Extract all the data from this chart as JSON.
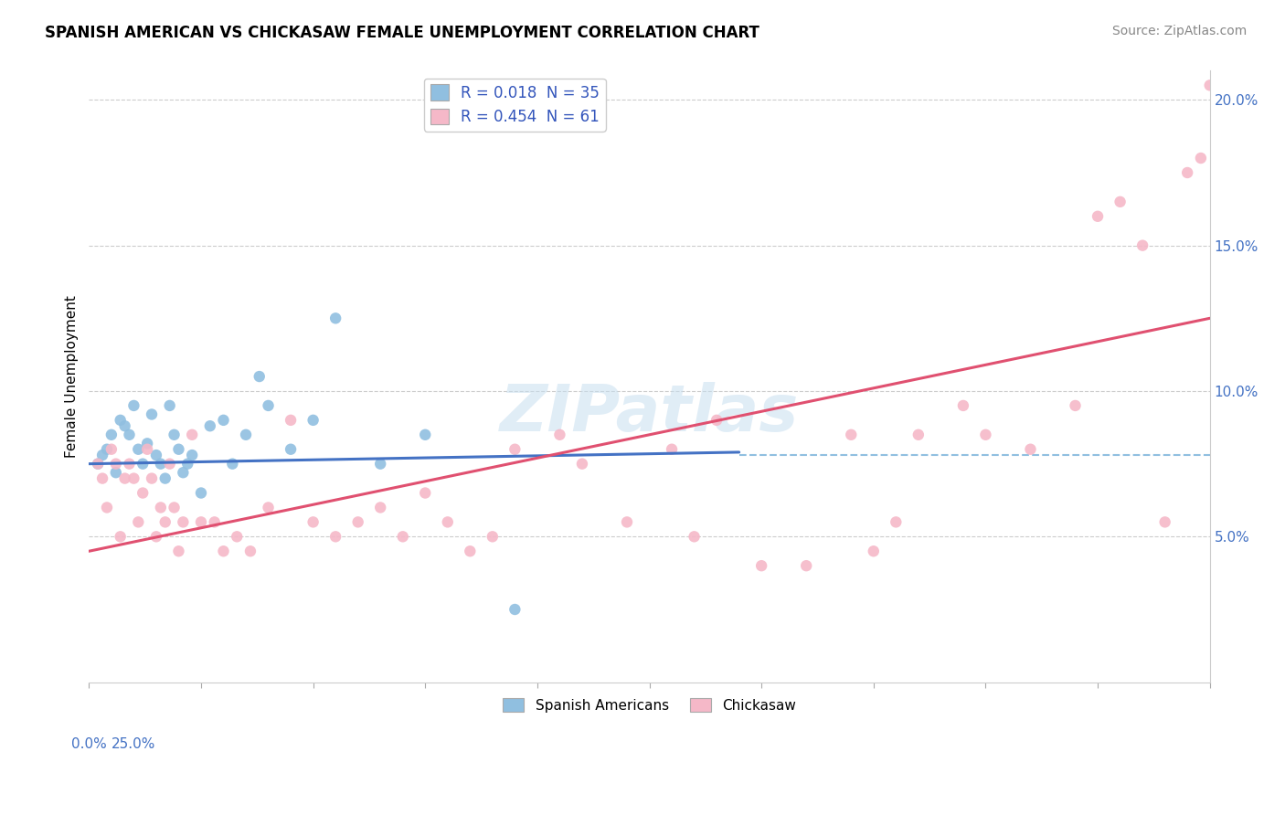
{
  "title": "SPANISH AMERICAN VS CHICKASAW FEMALE UNEMPLOYMENT CORRELATION CHART",
  "source": "Source: ZipAtlas.com",
  "ylabel": "Female Unemployment",
  "xlim": [
    0,
    25
  ],
  "ylim": [
    0,
    21
  ],
  "yticks": [
    5,
    10,
    15,
    20
  ],
  "ytick_labels": [
    "5.0%",
    "10.0%",
    "15.0%",
    "20.0%"
  ],
  "legend_labels": [
    "Spanish Americans",
    "Chickasaw"
  ],
  "color_blue": "#90bfe0",
  "color_pink": "#f5b8c8",
  "color_blue_line": "#4472c4",
  "color_pink_line": "#e05070",
  "color_dashed": "#90bfe0",
  "R_blue": 0.018,
  "N_blue": 35,
  "R_pink": 0.454,
  "N_pink": 61,
  "spanish_x": [
    0.2,
    0.3,
    0.4,
    0.5,
    0.6,
    0.7,
    0.8,
    0.9,
    1.0,
    1.1,
    1.2,
    1.3,
    1.4,
    1.5,
    1.6,
    1.7,
    1.8,
    1.9,
    2.0,
    2.1,
    2.2,
    2.3,
    2.5,
    2.7,
    3.0,
    3.2,
    3.5,
    3.8,
    4.0,
    4.5,
    5.0,
    5.5,
    6.5,
    7.5,
    9.5
  ],
  "spanish_y": [
    7.5,
    7.8,
    8.0,
    8.5,
    7.2,
    9.0,
    8.8,
    8.5,
    9.5,
    8.0,
    7.5,
    8.2,
    9.2,
    7.8,
    7.5,
    7.0,
    9.5,
    8.5,
    8.0,
    7.2,
    7.5,
    7.8,
    6.5,
    8.8,
    9.0,
    7.5,
    8.5,
    10.5,
    9.5,
    8.0,
    9.0,
    12.5,
    7.5,
    8.5,
    2.5
  ],
  "chickasaw_x": [
    0.2,
    0.3,
    0.4,
    0.5,
    0.6,
    0.7,
    0.8,
    0.9,
    1.0,
    1.1,
    1.2,
    1.3,
    1.4,
    1.5,
    1.6,
    1.7,
    1.8,
    1.9,
    2.0,
    2.1,
    2.3,
    2.5,
    2.8,
    3.0,
    3.3,
    3.6,
    4.0,
    4.5,
    5.0,
    5.5,
    6.0,
    6.5,
    7.0,
    7.5,
    8.0,
    8.5,
    9.0,
    9.5,
    10.5,
    11.0,
    12.0,
    13.0,
    13.5,
    14.0,
    15.0,
    16.0,
    17.0,
    17.5,
    18.0,
    18.5,
    19.5,
    20.0,
    21.0,
    22.0,
    22.5,
    23.0,
    23.5,
    24.0,
    24.5,
    24.8,
    25.0
  ],
  "chickasaw_y": [
    7.5,
    7.0,
    6.0,
    8.0,
    7.5,
    5.0,
    7.0,
    7.5,
    7.0,
    5.5,
    6.5,
    8.0,
    7.0,
    5.0,
    6.0,
    5.5,
    7.5,
    6.0,
    4.5,
    5.5,
    8.5,
    5.5,
    5.5,
    4.5,
    5.0,
    4.5,
    6.0,
    9.0,
    5.5,
    5.0,
    5.5,
    6.0,
    5.0,
    6.5,
    5.5,
    4.5,
    5.0,
    8.0,
    8.5,
    7.5,
    5.5,
    8.0,
    5.0,
    9.0,
    4.0,
    4.0,
    8.5,
    4.5,
    5.5,
    8.5,
    9.5,
    8.5,
    8.0,
    9.5,
    16.0,
    16.5,
    15.0,
    5.5,
    17.5,
    18.0,
    20.5
  ],
  "watermark_text": "ZIPatlas",
  "dashed_y": 7.8,
  "blue_line_x": [
    0.0,
    14.5
  ],
  "blue_line_y": [
    7.5,
    7.9
  ],
  "pink_line_x": [
    0.0,
    25.0
  ],
  "pink_line_y": [
    4.5,
    12.5
  ]
}
